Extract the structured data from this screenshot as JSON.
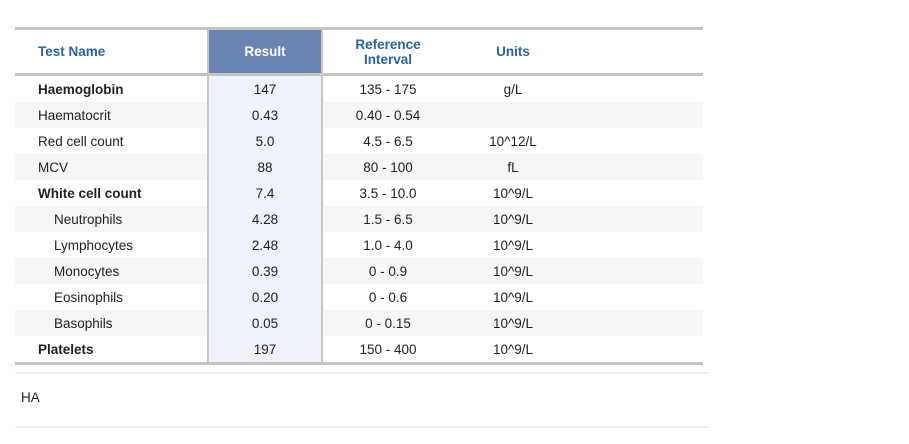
{
  "table": {
    "headers": {
      "name": "Test Name",
      "result": "Result",
      "reference": "Reference Interval",
      "units": "Units"
    },
    "rows": [
      {
        "name": "Haemoglobin",
        "result": "147",
        "reference": "135 - 175",
        "units": "g/L",
        "bold": true,
        "indent": false
      },
      {
        "name": "Haematocrit",
        "result": "0.43",
        "reference": "0.40 - 0.54",
        "units": "",
        "bold": false,
        "indent": false
      },
      {
        "name": "Red cell count",
        "result": "5.0",
        "reference": "4.5 - 6.5",
        "units": "10^12/L",
        "bold": false,
        "indent": false
      },
      {
        "name": "MCV",
        "result": "88",
        "reference": "80 - 100",
        "units": "fL",
        "bold": false,
        "indent": false
      },
      {
        "name": "White cell count",
        "result": "7.4",
        "reference": "3.5 - 10.0",
        "units": "10^9/L",
        "bold": true,
        "indent": false
      },
      {
        "name": "Neutrophils",
        "result": "4.28",
        "reference": "1.5 - 6.5",
        "units": "10^9/L",
        "bold": false,
        "indent": true
      },
      {
        "name": "Lymphocytes",
        "result": "2.48",
        "reference": "1.0 - 4.0",
        "units": "10^9/L",
        "bold": false,
        "indent": true
      },
      {
        "name": "Monocytes",
        "result": "0.39",
        "reference": "0 - 0.9",
        "units": "10^9/L",
        "bold": false,
        "indent": true
      },
      {
        "name": "Eosinophils",
        "result": "0.20",
        "reference": "0 - 0.6",
        "units": "10^9/L",
        "bold": false,
        "indent": true
      },
      {
        "name": "Basophils",
        "result": "0.05",
        "reference": "0 - 0.15",
        "units": "10^9/L",
        "bold": false,
        "indent": true
      },
      {
        "name": "Platelets",
        "result": "197",
        "reference": "150 - 400",
        "units": "10^9/L",
        "bold": true,
        "indent": false
      }
    ]
  },
  "note": "HA",
  "colors": {
    "header_text": "#2a63a8",
    "result_header_bg": "#6b84b4",
    "result_cell_bg": "#eef2fb"
  }
}
